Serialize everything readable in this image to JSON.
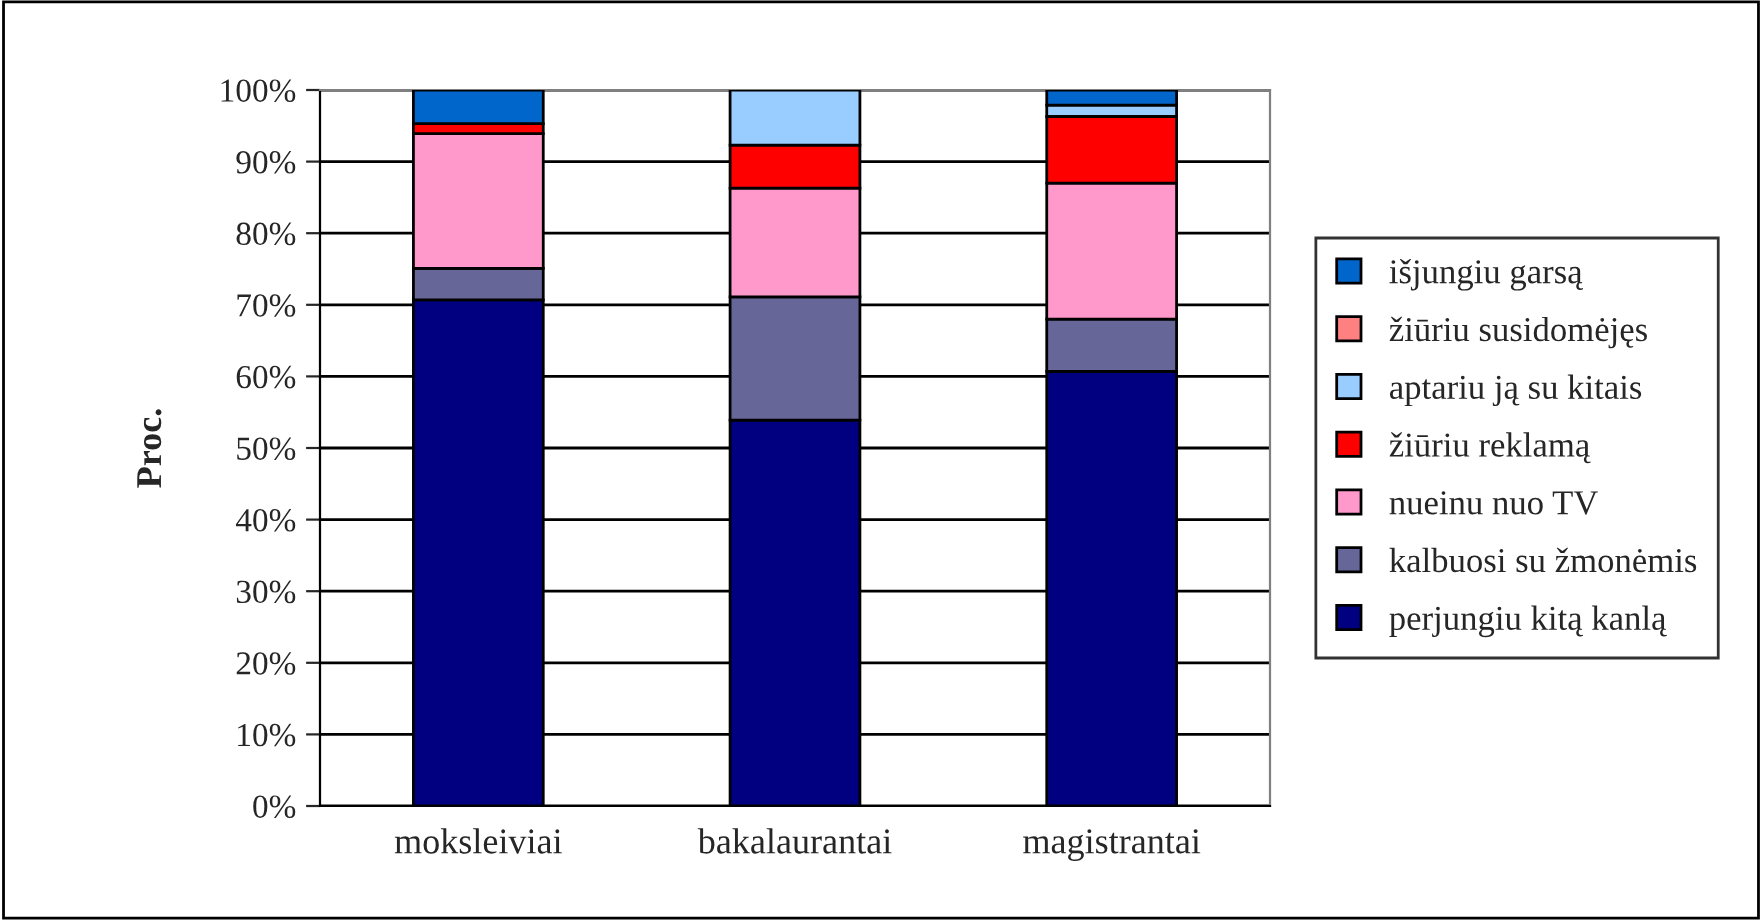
{
  "chart_data": {
    "type": "bar",
    "stacked": true,
    "ylabel": "Proc.",
    "categories": [
      "moksleiviai",
      "bakalaurantai",
      "magistrantai"
    ],
    "series": [
      {
        "name": "perjungiu kitą kanlą",
        "color": "#000080",
        "values": [
          70.7,
          53.9,
          60.7
        ]
      },
      {
        "name": "kalbuosi su žmonėmis",
        "color": "#666699",
        "values": [
          4.4,
          17.2,
          7.3
        ]
      },
      {
        "name": "nueinu nuo TV",
        "color": "#ff99cc",
        "values": [
          18.8,
          15.2,
          19.0
        ]
      },
      {
        "name": "žiūriu reklamą",
        "color": "#ff0000",
        "values": [
          1.4,
          6.0,
          9.3
        ]
      },
      {
        "name": "aptariu ją su kitais",
        "color": "#99ccff",
        "values": [
          0,
          7.7,
          1.6
        ]
      },
      {
        "name": "žiūriu susidomėjęs",
        "color": "#ff8080",
        "values": [
          0,
          0,
          0
        ]
      },
      {
        "name": "išjungiu garsą",
        "color": "#0066cc",
        "values": [
          4.7,
          0,
          2.1
        ]
      }
    ],
    "ylim": [
      0,
      100
    ],
    "yticks": [
      {
        "value": 0,
        "label": "0%"
      },
      {
        "value": 10,
        "label": "10%"
      },
      {
        "value": 20,
        "label": "20%"
      },
      {
        "value": 30,
        "label": "30%"
      },
      {
        "value": 40,
        "label": "40%"
      },
      {
        "value": 50,
        "label": "50%"
      },
      {
        "value": 60,
        "label": "60%"
      },
      {
        "value": 70,
        "label": "70%"
      },
      {
        "value": 80,
        "label": "80%"
      },
      {
        "value": 90,
        "label": "90%"
      },
      {
        "value": 100,
        "label": "100%"
      }
    ],
    "grid": "y",
    "legend": "right"
  }
}
